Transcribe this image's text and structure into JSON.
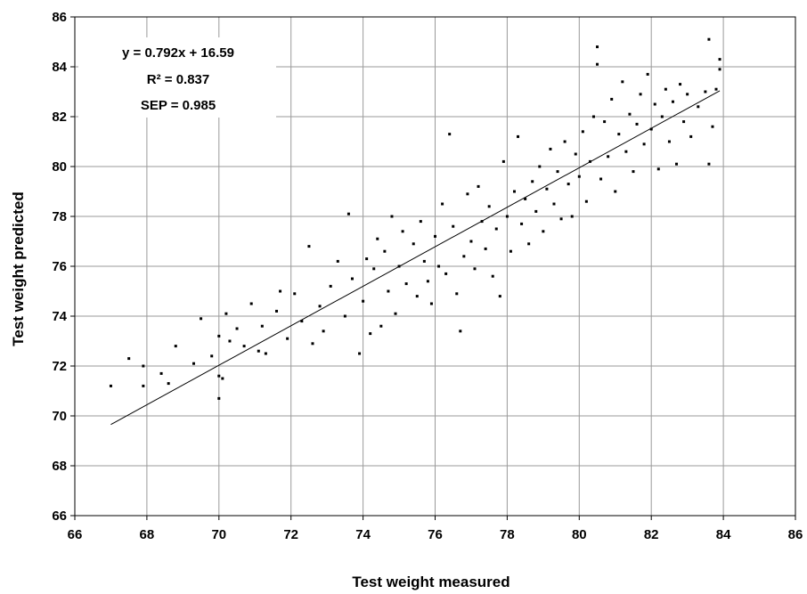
{
  "chart_data": {
    "type": "scatter",
    "title": "",
    "xlabel": "Test weight measured",
    "ylabel": "Test weight predicted",
    "xlim": [
      66,
      86
    ],
    "ylim": [
      66,
      86
    ],
    "x_ticks": [
      "66",
      "68",
      "70",
      "72",
      "74",
      "76",
      "78",
      "80",
      "82",
      "84",
      "86"
    ],
    "y_ticks": [
      "66",
      "68",
      "70",
      "72",
      "74",
      "76",
      "78",
      "80",
      "82",
      "84",
      "86"
    ],
    "grid": true,
    "legend": "none",
    "annotations": [
      "y = 0.792x + 16.59",
      "R² = 0.837",
      "SEP = 0.985"
    ],
    "fit_line": {
      "slope": 0.792,
      "intercept": 16.59,
      "x_range": [
        67.0,
        83.9
      ]
    },
    "series": [
      {
        "points": [
          [
            67.0,
            71.2
          ],
          [
            67.5,
            72.3
          ],
          [
            67.9,
            72.0
          ],
          [
            67.9,
            71.2
          ],
          [
            68.4,
            71.7
          ],
          [
            68.6,
            71.3
          ],
          [
            68.8,
            72.8
          ],
          [
            69.3,
            72.1
          ],
          [
            69.5,
            73.9
          ],
          [
            69.8,
            72.4
          ],
          [
            70.0,
            71.6
          ],
          [
            70.0,
            70.7
          ],
          [
            70.0,
            73.2
          ],
          [
            70.1,
            71.5
          ],
          [
            70.2,
            74.1
          ],
          [
            70.3,
            73.0
          ],
          [
            70.5,
            73.5
          ],
          [
            70.7,
            72.8
          ],
          [
            70.9,
            74.5
          ],
          [
            71.1,
            72.6
          ],
          [
            71.2,
            73.6
          ],
          [
            71.3,
            72.5
          ],
          [
            71.6,
            74.2
          ],
          [
            71.7,
            75.0
          ],
          [
            71.9,
            73.1
          ],
          [
            72.1,
            74.9
          ],
          [
            72.3,
            73.8
          ],
          [
            72.5,
            76.8
          ],
          [
            72.6,
            72.9
          ],
          [
            72.8,
            74.4
          ],
          [
            72.9,
            73.4
          ],
          [
            73.1,
            75.2
          ],
          [
            73.3,
            76.2
          ],
          [
            73.5,
            74.0
          ],
          [
            73.6,
            78.1
          ],
          [
            73.7,
            75.5
          ],
          [
            73.9,
            72.5
          ],
          [
            74.0,
            74.6
          ],
          [
            74.1,
            76.3
          ],
          [
            74.2,
            73.3
          ],
          [
            74.3,
            75.9
          ],
          [
            74.4,
            77.1
          ],
          [
            74.5,
            73.6
          ],
          [
            74.6,
            76.6
          ],
          [
            74.7,
            75.0
          ],
          [
            74.8,
            78.0
          ],
          [
            74.9,
            74.1
          ],
          [
            75.0,
            76.0
          ],
          [
            75.1,
            77.4
          ],
          [
            75.2,
            75.3
          ],
          [
            75.4,
            76.9
          ],
          [
            75.5,
            74.8
          ],
          [
            75.6,
            77.8
          ],
          [
            75.7,
            76.2
          ],
          [
            75.8,
            75.4
          ],
          [
            75.9,
            74.5
          ],
          [
            76.0,
            77.2
          ],
          [
            76.1,
            76.0
          ],
          [
            76.2,
            78.5
          ],
          [
            76.3,
            75.7
          ],
          [
            76.4,
            81.3
          ],
          [
            76.5,
            77.6
          ],
          [
            76.6,
            74.9
          ],
          [
            76.7,
            73.4
          ],
          [
            76.8,
            76.4
          ],
          [
            76.9,
            78.9
          ],
          [
            77.0,
            77.0
          ],
          [
            77.1,
            75.9
          ],
          [
            77.2,
            79.2
          ],
          [
            77.3,
            77.8
          ],
          [
            77.4,
            76.7
          ],
          [
            77.5,
            78.4
          ],
          [
            77.6,
            75.6
          ],
          [
            77.7,
            77.5
          ],
          [
            77.8,
            74.8
          ],
          [
            77.9,
            80.2
          ],
          [
            78.0,
            78.0
          ],
          [
            78.1,
            76.6
          ],
          [
            78.2,
            79.0
          ],
          [
            78.3,
            81.2
          ],
          [
            78.4,
            77.7
          ],
          [
            78.5,
            78.7
          ],
          [
            78.6,
            76.9
          ],
          [
            78.7,
            79.4
          ],
          [
            78.8,
            78.2
          ],
          [
            78.9,
            80.0
          ],
          [
            79.0,
            77.4
          ],
          [
            79.1,
            79.1
          ],
          [
            79.2,
            80.7
          ],
          [
            79.3,
            78.5
          ],
          [
            79.4,
            79.8
          ],
          [
            79.5,
            77.9
          ],
          [
            79.6,
            81.0
          ],
          [
            79.7,
            79.3
          ],
          [
            79.8,
            78.0
          ],
          [
            79.9,
            80.5
          ],
          [
            80.0,
            79.6
          ],
          [
            80.1,
            81.4
          ],
          [
            80.2,
            78.6
          ],
          [
            80.3,
            80.2
          ],
          [
            80.4,
            82.0
          ],
          [
            80.5,
            84.8
          ],
          [
            80.5,
            84.1
          ],
          [
            80.6,
            79.5
          ],
          [
            80.7,
            81.8
          ],
          [
            80.8,
            80.4
          ],
          [
            80.9,
            82.7
          ],
          [
            81.0,
            79.0
          ],
          [
            81.1,
            81.3
          ],
          [
            81.2,
            83.4
          ],
          [
            81.3,
            80.6
          ],
          [
            81.4,
            82.1
          ],
          [
            81.5,
            79.8
          ],
          [
            81.6,
            81.7
          ],
          [
            81.7,
            82.9
          ],
          [
            81.8,
            80.9
          ],
          [
            81.9,
            83.7
          ],
          [
            82.0,
            81.5
          ],
          [
            82.1,
            82.5
          ],
          [
            82.2,
            79.9
          ],
          [
            82.3,
            82.0
          ],
          [
            82.4,
            83.1
          ],
          [
            82.5,
            81.0
          ],
          [
            82.6,
            82.6
          ],
          [
            82.7,
            80.1
          ],
          [
            82.8,
            83.3
          ],
          [
            82.9,
            81.8
          ],
          [
            83.0,
            82.9
          ],
          [
            83.1,
            81.2
          ],
          [
            83.3,
            82.4
          ],
          [
            83.5,
            83.0
          ],
          [
            83.6,
            85.1
          ],
          [
            83.6,
            80.1
          ],
          [
            83.7,
            81.6
          ],
          [
            83.8,
            83.1
          ],
          [
            83.9,
            84.3
          ],
          [
            83.9,
            83.9
          ]
        ]
      }
    ]
  }
}
